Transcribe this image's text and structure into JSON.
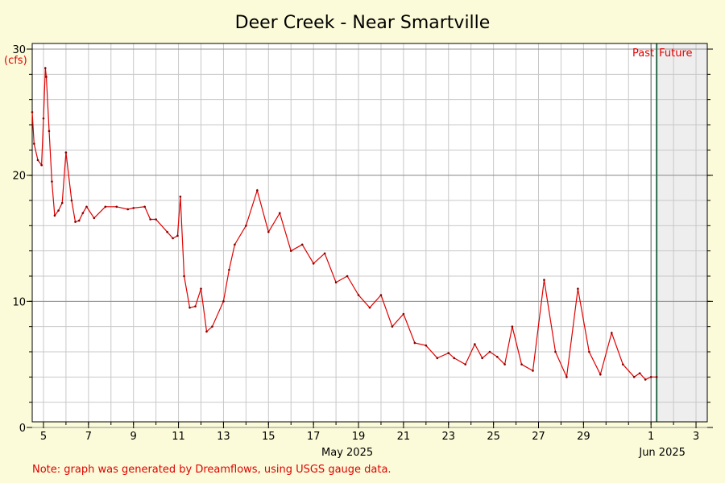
{
  "chart_data": {
    "type": "line",
    "title": "Deer Creek - Near Smartville",
    "ylabel": "(cfs)",
    "ylim": [
      0,
      30
    ],
    "y_ticks": [
      "0",
      "10",
      "20",
      "30"
    ],
    "x_ticks": [
      "5",
      "7",
      "9",
      "11",
      "13",
      "15",
      "17",
      "19",
      "21",
      "23",
      "25",
      "27",
      "29",
      "1",
      "3"
    ],
    "x_tick_values": [
      "2025-05-05",
      "2025-05-07",
      "2025-05-09",
      "2025-05-11",
      "2025-05-13",
      "2025-05-15",
      "2025-05-17",
      "2025-05-19",
      "2025-05-21",
      "2025-05-23",
      "2025-05-25",
      "2025-05-27",
      "2025-05-29",
      "2025-06-01",
      "2025-06-03"
    ],
    "xlim": [
      "2025-05-04T12:00",
      "2025-06-03T12:00"
    ],
    "month_labels": [
      {
        "text": "May 2025",
        "date": "2025-05-18T12:00"
      },
      {
        "text": "Jun 2025",
        "date": "2025-06-01T12:00"
      }
    ],
    "now": "2025-06-01T06:00",
    "past_label": "Past",
    "future_label": "Future",
    "note": "Note: graph was generated by Dreamflows, using USGS gauge data.",
    "grid": true,
    "colors": {
      "series": "#e00000",
      "grid": "#c8c8c8",
      "future_shade": "#eeeeee",
      "now_line": "#2e6b4e",
      "past_line": "#666666"
    },
    "series": [
      {
        "x": [
          "2025-05-04T12:00",
          "2025-05-04T14:00",
          "2025-05-04T18:00",
          "2025-05-04T22:00",
          "2025-05-05T00:00",
          "2025-05-05T02:00",
          "2025-05-05T03:00",
          "2025-05-05T06:00",
          "2025-05-05T09:00",
          "2025-05-05T12:00",
          "2025-05-05T16:00",
          "2025-05-05T20:00",
          "2025-05-06T00:00",
          "2025-05-06T06:00",
          "2025-05-06T10:00",
          "2025-05-06T14:00",
          "2025-05-06T18:00",
          "2025-05-06T22:00",
          "2025-05-07T06:00",
          "2025-05-07T18:00",
          "2025-05-08T06:00",
          "2025-05-08T18:00",
          "2025-05-09T00:00",
          "2025-05-09T12:00",
          "2025-05-09T18:00",
          "2025-05-10T00:00",
          "2025-05-10T12:00",
          "2025-05-10T18:00",
          "2025-05-10T23:00",
          "2025-05-11T02:00",
          "2025-05-11T06:00",
          "2025-05-11T12:00",
          "2025-05-11T18:00",
          "2025-05-12T00:00",
          "2025-05-12T06:00",
          "2025-05-12T12:00",
          "2025-05-13T00:00",
          "2025-05-13T06:00",
          "2025-05-13T12:00",
          "2025-05-14T00:00",
          "2025-05-14T12:00",
          "2025-05-15T00:00",
          "2025-05-15T12:00",
          "2025-05-16T00:00",
          "2025-05-16T12:00",
          "2025-05-17T00:00",
          "2025-05-17T12:00",
          "2025-05-18T00:00",
          "2025-05-18T12:00",
          "2025-05-19T00:00",
          "2025-05-19T12:00",
          "2025-05-20T00:00",
          "2025-05-20T12:00",
          "2025-05-21T00:00",
          "2025-05-21T12:00",
          "2025-05-22T00:00",
          "2025-05-22T12:00",
          "2025-05-23T00:00",
          "2025-05-23T06:00",
          "2025-05-23T18:00",
          "2025-05-24T04:00",
          "2025-05-24T12:00",
          "2025-05-24T20:00",
          "2025-05-25T04:00",
          "2025-05-25T12:00",
          "2025-05-25T20:00",
          "2025-05-26T06:00",
          "2025-05-26T18:00",
          "2025-05-27T06:00",
          "2025-05-27T18:00",
          "2025-05-28T06:00",
          "2025-05-28T18:00",
          "2025-05-29T06:00",
          "2025-05-29T18:00",
          "2025-05-30T06:00",
          "2025-05-30T18:00",
          "2025-05-31T06:00",
          "2025-05-31T12:00",
          "2025-05-31T18:00",
          "2025-06-01T00:00",
          "2025-06-01T06:00"
        ],
        "values": [
          25.0,
          22.5,
          21.2,
          20.8,
          24.5,
          28.5,
          27.8,
          23.5,
          19.5,
          16.8,
          17.2,
          17.8,
          21.8,
          18.0,
          16.3,
          16.4,
          17.0,
          17.5,
          16.6,
          17.5,
          17.5,
          17.3,
          17.4,
          17.5,
          16.5,
          16.5,
          15.5,
          15.0,
          15.2,
          18.3,
          12.0,
          9.5,
          9.6,
          11.0,
          7.6,
          8.0,
          10.0,
          12.5,
          14.5,
          16.0,
          18.8,
          15.5,
          17.0,
          14.0,
          14.5,
          13.0,
          13.8,
          11.5,
          12.0,
          10.5,
          9.5,
          10.5,
          8.0,
          9.0,
          6.7,
          6.5,
          5.5,
          5.9,
          5.5,
          5.0,
          6.6,
          5.5,
          6.0,
          5.6,
          5.0,
          8.0,
          5.0,
          4.5,
          11.7,
          6.0,
          4.0,
          11.0,
          6.0,
          4.2,
          7.5,
          5.0,
          4.0,
          4.3,
          3.8,
          4.0,
          4.0
        ]
      }
    ]
  }
}
